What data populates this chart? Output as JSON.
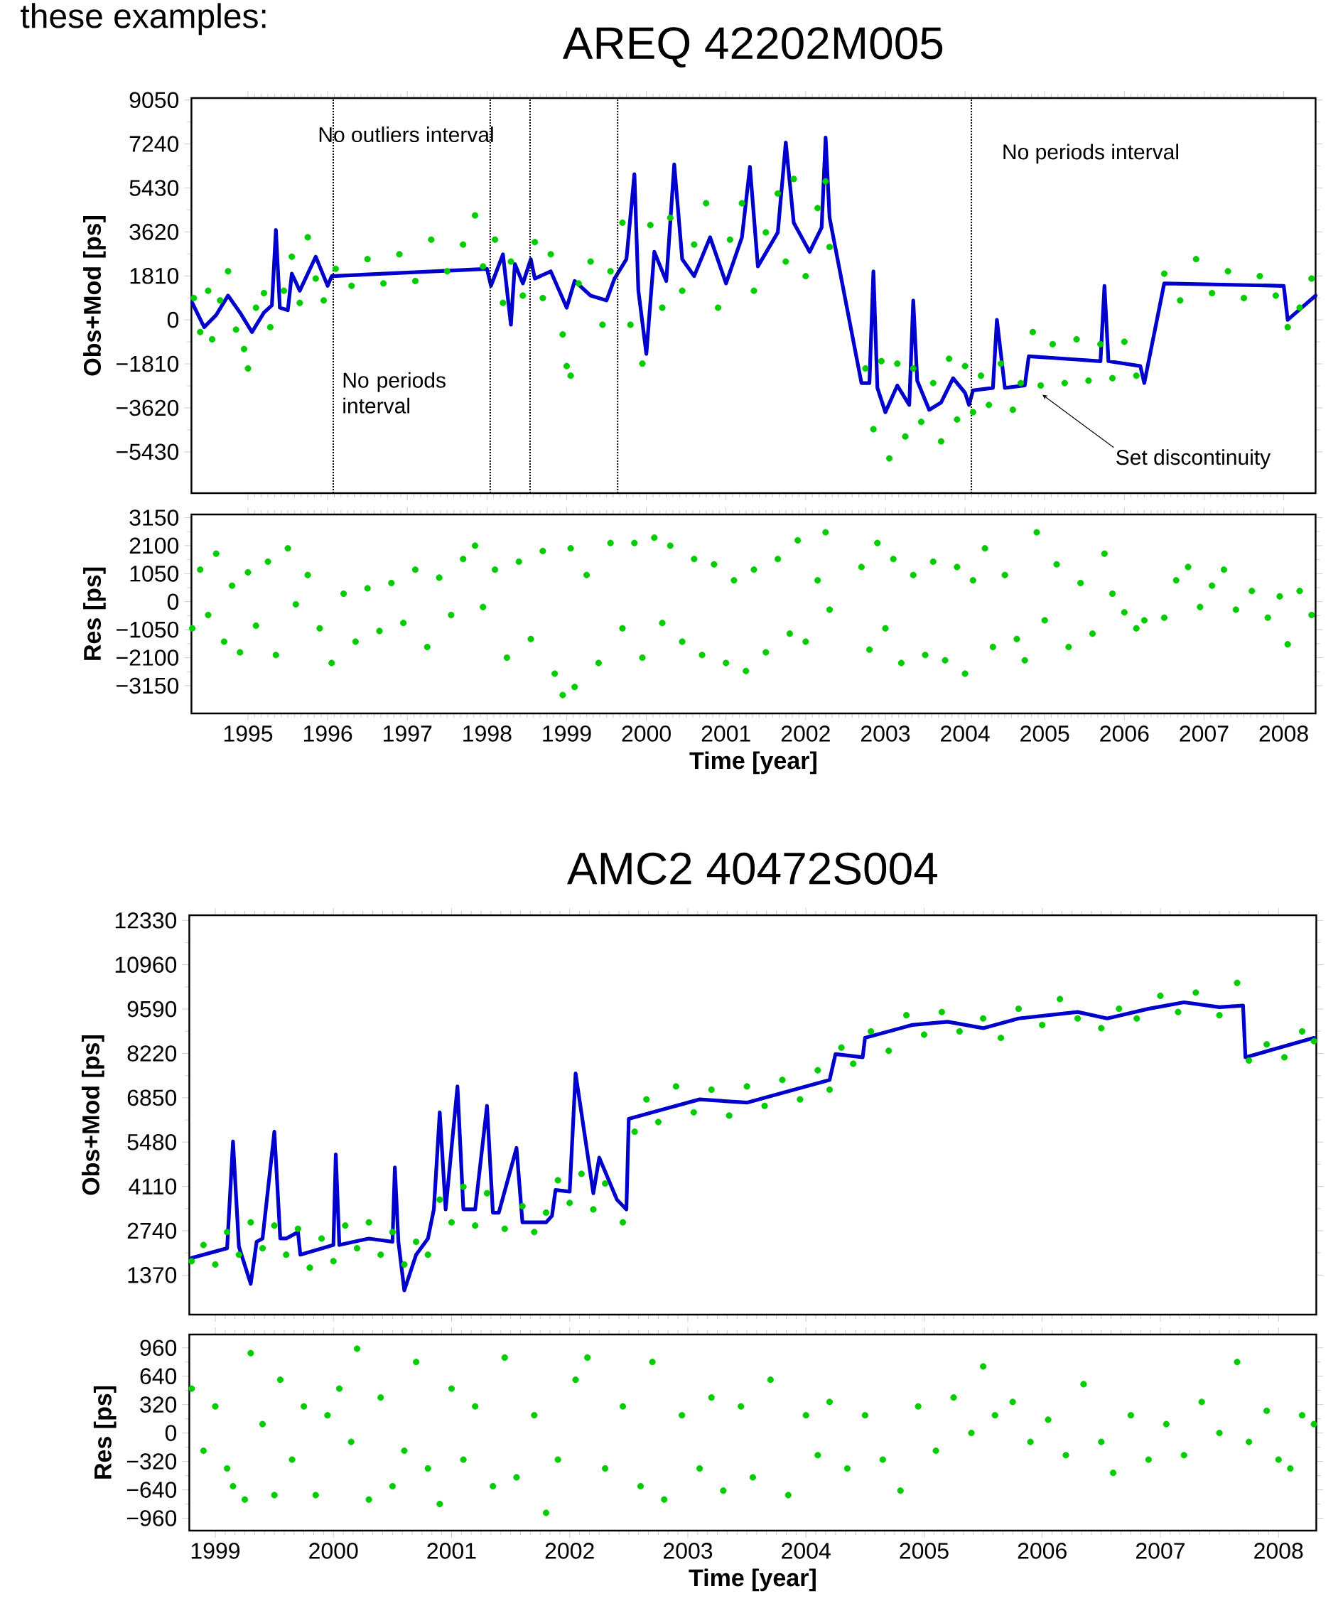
{
  "chart_data": [
    {
      "type": "scatter",
      "title": "AREQ 42202M005",
      "ylabel": "Obs+Mod [ps]",
      "tick_labels": "y",
      "xlim": [
        1994.29,
        2008.4
      ],
      "xticks": [
        1995,
        1996,
        1997,
        1998,
        1999,
        2000,
        2001,
        2002,
        2003,
        2004,
        2005,
        2006,
        2007,
        2008
      ],
      "ylim": [
        -7130,
        9130
      ],
      "yticks": [
        {
          "value": -5430,
          "label": "−5430"
        },
        {
          "value": -3620,
          "label": "−3620"
        },
        {
          "value": -1810,
          "label": "−1810"
        },
        0,
        1810,
        3620,
        5430,
        7240,
        9050
      ],
      "ref_lines": [
        {
          "axis": "x",
          "value": 1996.07,
          "line_style": "dotted"
        },
        {
          "axis": "x",
          "value": 1998.04,
          "line_style": "dotted"
        },
        {
          "axis": "x",
          "value": 1998.54,
          "line_style": "dotted"
        },
        {
          "axis": "x",
          "value": 1999.64,
          "line_style": "dotted"
        },
        {
          "axis": "x",
          "value": 2004.08,
          "line_style": "dotted"
        }
      ],
      "annotations": [
        "these examples:",
        "No outliers interval",
        "No periods interval",
        "No periods interval",
        "Set discontinuity"
      ],
      "series": [
        {
          "color": "#00cc00",
          "x": [
            1994.32,
            1994.4,
            1994.5,
            1994.55,
            1994.65,
            1994.75,
            1994.85,
            1994.95,
            1995.0,
            1995.1,
            1995.2,
            1995.28,
            1995.45,
            1995.55,
            1995.65,
            1995.75,
            1995.85,
            1995.95,
            1996.1,
            1996.3,
            1996.5,
            1996.7,
            1996.9,
            1997.1,
            1997.3,
            1997.5,
            1997.7,
            1997.85,
            1997.95,
            1998.1,
            1998.2,
            1998.3,
            1998.45,
            1998.6,
            1998.7,
            1998.8,
            1998.95,
            1999.0,
            1999.05,
            1999.15,
            1999.3,
            1999.45,
            1999.55,
            1999.7,
            1999.8,
            1999.95,
            2000.05,
            2000.2,
            2000.3,
            2000.45,
            2000.6,
            2000.75,
            2000.9,
            2001.05,
            2001.2,
            2001.35,
            2001.5,
            2001.65,
            2001.75,
            2001.85,
            2002.0,
            2002.15,
            2002.25,
            2002.3,
            2002.75,
            2002.85,
            2002.95,
            2003.05,
            2003.15,
            2003.25,
            2003.35,
            2003.45,
            2003.6,
            2003.7,
            2003.8,
            2003.9,
            2004.0,
            2004.1,
            2004.2,
            2004.3,
            2004.45,
            2004.6,
            2004.7,
            2004.85,
            2004.95,
            2005.1,
            2005.25,
            2005.4,
            2005.55,
            2005.7,
            2005.85,
            2006.0,
            2006.15,
            2006.5,
            2006.7,
            2006.9,
            2007.1,
            2007.3,
            2007.5,
            2007.7,
            2007.9,
            2008.05,
            2008.2,
            2008.35
          ],
          "values": [
            900,
            -500,
            1200,
            -800,
            800,
            2000,
            -400,
            -1200,
            -2000,
            500,
            1100,
            -300,
            1200,
            2600,
            700,
            3400,
            1700,
            800,
            2100,
            1400,
            2500,
            1500,
            2700,
            1600,
            3300,
            2000,
            3100,
            4300,
            2200,
            3300,
            700,
            2400,
            1000,
            3200,
            900,
            2700,
            -600,
            -1900,
            -2300,
            1500,
            2400,
            -200,
            2000,
            4000,
            -200,
            -1800,
            3900,
            500,
            4200,
            1200,
            3100,
            4800,
            500,
            3300,
            4800,
            1200,
            3600,
            5200,
            2400,
            5800,
            1800,
            4600,
            5700,
            3000,
            -2000,
            -4500,
            -1700,
            -5700,
            -1800,
            -4800,
            -2000,
            -4200,
            -2600,
            -5000,
            -1600,
            -4100,
            -1900,
            -3800,
            -2300,
            -3500,
            -1800,
            -3700,
            -2600,
            -500,
            -2700,
            -1000,
            -2600,
            -800,
            -2500,
            -1000,
            -2400,
            -900,
            -2300,
            1900,
            800,
            2500,
            1100,
            2000,
            900,
            1800,
            1000,
            -300,
            500,
            1700
          ]
        },
        {
          "type": "line",
          "color": "#0000cc",
          "x": [
            1994.3,
            1994.45,
            1994.6,
            1994.75,
            1994.9,
            1995.05,
            1995.2,
            1995.3,
            1995.35,
            1995.4,
            1995.5,
            1995.55,
            1995.65,
            1995.85,
            1996.0,
            1996.05,
            1998.0,
            1998.05,
            1998.2,
            1998.3,
            1998.35,
            1998.45,
            1998.55,
            1998.6,
            1998.8,
            1999.0,
            1999.1,
            1999.3,
            1999.5,
            1999.6,
            1999.75,
            1999.85,
            1999.9,
            2000.0,
            2000.1,
            2000.25,
            2000.35,
            2000.45,
            2000.6,
            2000.8,
            2001.0,
            2001.2,
            2001.3,
            2001.4,
            2001.65,
            2001.75,
            2001.85,
            2002.05,
            2002.2,
            2002.25,
            2002.3,
            2002.7,
            2002.8,
            2002.85,
            2002.9,
            2003.0,
            2003.15,
            2003.3,
            2003.35,
            2003.4,
            2003.55,
            2003.7,
            2003.85,
            2004.0,
            2004.05,
            2004.1,
            2004.35,
            2004.4,
            2004.5,
            2004.75,
            2004.8,
            2005.7,
            2005.75,
            2005.8,
            2006.2,
            2006.25,
            2006.5,
            2008.0,
            2008.05,
            2008.4
          ],
          "values": [
            700,
            -300,
            200,
            1000,
            300,
            -500,
            300,
            600,
            3700,
            500,
            400,
            1900,
            1200,
            2600,
            1400,
            1800,
            2100,
            1400,
            2700,
            -200,
            2300,
            1500,
            2500,
            1700,
            2000,
            500,
            1600,
            1000,
            800,
            1700,
            2500,
            6000,
            1200,
            -1400,
            2800,
            1600,
            6400,
            2500,
            1800,
            3400,
            1500,
            3400,
            6300,
            2200,
            3600,
            7300,
            4000,
            2800,
            3800,
            7500,
            4200,
            -2600,
            -2600,
            2000,
            -2800,
            -3800,
            -2700,
            -3500,
            800,
            -2500,
            -3700,
            -3400,
            -2400,
            -3000,
            -3500,
            -2900,
            -2800,
            0,
            -2800,
            -2700,
            -1500,
            -1700,
            1400,
            -1700,
            -1900,
            -2600,
            1500,
            1400,
            0,
            1000
          ]
        }
      ]
    },
    {
      "type": "scatter",
      "xlabel": "Time [year]",
      "ylabel": "Res [ps]",
      "xlim": [
        1994.29,
        2008.4
      ],
      "xticks": [
        1995,
        1996,
        1997,
        1998,
        1999,
        2000,
        2001,
        2002,
        2003,
        2004,
        2005,
        2006,
        2007,
        2008
      ],
      "ylim": [
        -4190,
        3270
      ],
      "yticks": [
        {
          "value": -3150,
          "label": "−3150"
        },
        {
          "value": -2100,
          "label": "−2100"
        },
        {
          "value": -1050,
          "label": "−1050"
        },
        0,
        1050,
        2100,
        3150
      ],
      "series": [
        {
          "color": "#00cc00",
          "x": [
            1994.3,
            1994.4,
            1994.5,
            1994.6,
            1994.7,
            1994.8,
            1994.9,
            1995.0,
            1995.1,
            1995.25,
            1995.35,
            1995.5,
            1995.6,
            1995.75,
            1995.9,
            1996.05,
            1996.2,
            1996.35,
            1996.5,
            1996.65,
            1996.8,
            1996.95,
            1997.1,
            1997.25,
            1997.4,
            1997.55,
            1997.7,
            1997.85,
            1997.95,
            1998.1,
            1998.25,
            1998.4,
            1998.55,
            1998.7,
            1998.85,
            1998.95,
            1999.05,
            1999.1,
            1999.25,
            1999.4,
            1999.55,
            1999.7,
            1999.85,
            1999.95,
            2000.1,
            2000.2,
            2000.3,
            2000.45,
            2000.6,
            2000.7,
            2000.85,
            2001.0,
            2001.1,
            2001.25,
            2001.35,
            2001.5,
            2001.65,
            2001.8,
            2001.9,
            2002.0,
            2002.15,
            2002.25,
            2002.3,
            2002.7,
            2002.8,
            2002.9,
            2003.0,
            2003.1,
            2003.2,
            2003.35,
            2003.5,
            2003.6,
            2003.75,
            2003.9,
            2004.0,
            2004.1,
            2004.25,
            2004.35,
            2004.5,
            2004.65,
            2004.75,
            2004.9,
            2005.0,
            2005.15,
            2005.3,
            2005.45,
            2005.6,
            2005.75,
            2005.85,
            2006.0,
            2006.15,
            2006.25,
            2006.5,
            2006.65,
            2006.8,
            2006.95,
            2007.1,
            2007.25,
            2007.4,
            2007.6,
            2007.8,
            2007.95,
            2008.05,
            2008.2,
            2008.35
          ],
          "values": [
            -1000,
            1200,
            -500,
            1800,
            -1500,
            600,
            -1900,
            1100,
            -900,
            1500,
            -2000,
            2000,
            -100,
            1000,
            -1000,
            -2300,
            300,
            -1500,
            500,
            -1100,
            700,
            -800,
            1200,
            -1700,
            900,
            -500,
            1600,
            2100,
            -200,
            1200,
            -2100,
            1500,
            -1400,
            1900,
            -2700,
            -3500,
            2000,
            -3200,
            1000,
            -2300,
            2200,
            -1000,
            2200,
            -2100,
            2400,
            -800,
            2100,
            -1500,
            1600,
            -2000,
            1400,
            -2300,
            800,
            -2600,
            1200,
            -1900,
            1600,
            -1200,
            2300,
            -1500,
            800,
            2600,
            -300,
            1300,
            -1800,
            2200,
            -1000,
            1600,
            -2300,
            1000,
            -2000,
            1500,
            -2200,
            1300,
            -2700,
            800,
            2000,
            -1700,
            1000,
            -1400,
            -2200,
            2600,
            -700,
            1400,
            -1700,
            700,
            -1200,
            1800,
            300,
            -400,
            -1000,
            -700,
            -600,
            800,
            1300,
            -200,
            600,
            1200,
            -300,
            400,
            -600,
            200,
            -1600,
            400,
            -500
          ]
        }
      ]
    },
    {
      "type": "scatter",
      "title": "AMC2 40472S004",
      "ylabel": "Obs+Mod [ps]",
      "tick_labels": "y",
      "xlim": [
        1998.78,
        2008.32
      ],
      "xticks": [
        1999,
        2000,
        2001,
        2002,
        2003,
        2004,
        2005,
        2006,
        2007,
        2008
      ],
      "ylim": [
        150,
        12490
      ],
      "yticks": [
        1370,
        2740,
        4110,
        5480,
        6850,
        8220,
        9590,
        10960,
        12330
      ],
      "series": [
        {
          "color": "#00cc00",
          "x": [
            1998.8,
            1998.9,
            1999.0,
            1999.1,
            1999.2,
            1999.3,
            1999.4,
            1999.5,
            1999.6,
            1999.7,
            1999.8,
            1999.9,
            2000.0,
            2000.1,
            2000.2,
            2000.3,
            2000.4,
            2000.5,
            2000.6,
            2000.7,
            2000.8,
            2000.9,
            2001.0,
            2001.1,
            2001.2,
            2001.3,
            2001.45,
            2001.6,
            2001.7,
            2001.8,
            2001.9,
            2002.0,
            2002.1,
            2002.2,
            2002.3,
            2002.45,
            2002.55,
            2002.65,
            2002.75,
            2002.9,
            2003.05,
            2003.2,
            2003.35,
            2003.5,
            2003.65,
            2003.8,
            2003.95,
            2004.1,
            2004.2,
            2004.3,
            2004.4,
            2004.55,
            2004.7,
            2004.85,
            2005.0,
            2005.15,
            2005.3,
            2005.5,
            2005.65,
            2005.8,
            2006.0,
            2006.15,
            2006.3,
            2006.5,
            2006.65,
            2006.8,
            2007.0,
            2007.15,
            2007.3,
            2007.5,
            2007.65,
            2007.75,
            2007.9,
            2008.05,
            2008.2,
            2008.3
          ],
          "values": [
            1800,
            2300,
            1700,
            2700,
            2000,
            3000,
            2200,
            2900,
            2000,
            2800,
            1600,
            2500,
            1800,
            2900,
            2200,
            3000,
            2000,
            2700,
            1700,
            2400,
            2000,
            3700,
            3000,
            4100,
            2900,
            3900,
            2800,
            3500,
            2700,
            3300,
            4300,
            3600,
            4500,
            3400,
            4200,
            3000,
            5800,
            6800,
            6100,
            7200,
            6400,
            7100,
            6300,
            7200,
            6600,
            7400,
            6800,
            7700,
            7100,
            8400,
            7900,
            8900,
            8300,
            9400,
            8800,
            9500,
            8900,
            9300,
            8700,
            9600,
            9100,
            9900,
            9300,
            9000,
            9600,
            9300,
            10000,
            9500,
            10100,
            9400,
            10400,
            8000,
            8500,
            8100,
            8900,
            8600
          ]
        },
        {
          "type": "line",
          "color": "#0000cc",
          "x": [
            1998.8,
            1999.1,
            1999.15,
            1999.2,
            1999.3,
            1999.35,
            1999.4,
            1999.5,
            1999.55,
            1999.6,
            1999.7,
            1999.72,
            2000.0,
            2000.02,
            2000.05,
            2000.3,
            2000.5,
            2000.52,
            2000.55,
            2000.6,
            2000.7,
            2000.8,
            2000.85,
            2000.9,
            2000.95,
            2001.05,
            2001.1,
            2001.2,
            2001.3,
            2001.35,
            2001.4,
            2001.55,
            2001.6,
            2001.8,
            2001.85,
            2001.88,
            2002.0,
            2002.05,
            2002.2,
            2002.25,
            2002.4,
            2002.48,
            2002.5,
            2002.8,
            2003.1,
            2003.5,
            2003.8,
            2004.2,
            2004.25,
            2004.48,
            2004.5,
            2004.9,
            2005.2,
            2005.5,
            2005.8,
            2006.3,
            2006.55,
            2006.9,
            2007.2,
            2007.5,
            2007.7,
            2007.72,
            2008.3
          ],
          "values": [
            1900,
            2200,
            5500,
            2250,
            1100,
            2400,
            2500,
            5800,
            2500,
            2500,
            2700,
            2000,
            2300,
            5100,
            2300,
            2500,
            2400,
            4700,
            2400,
            900,
            2000,
            2500,
            3400,
            6400,
            3400,
            7200,
            3400,
            3400,
            6600,
            3300,
            3300,
            5300,
            3000,
            3000,
            3200,
            4000,
            3950,
            7600,
            3900,
            5000,
            3700,
            3400,
            6200,
            6500,
            6800,
            6700,
            7000,
            7400,
            8200,
            8100,
            8700,
            9100,
            9200,
            9000,
            9300,
            9500,
            9300,
            9600,
            9800,
            9650,
            9700,
            8100,
            8700
          ]
        }
      ]
    },
    {
      "type": "scatter",
      "xlabel": "Time [year]",
      "ylabel": "Res [ps]",
      "xlim": [
        1998.78,
        2008.32
      ],
      "xticks": [
        1999,
        2000,
        2001,
        2002,
        2003,
        2004,
        2005,
        2006,
        2007,
        2008
      ],
      "ylim": [
        -1100,
        1110
      ],
      "yticks": [
        {
          "value": -960,
          "label": "−960"
        },
        {
          "value": -640,
          "label": "−640"
        },
        {
          "value": -320,
          "label": "−320"
        },
        0,
        320,
        640,
        960
      ],
      "series": [
        {
          "color": "#00cc00",
          "x": [
            1998.8,
            1998.9,
            1999.0,
            1999.1,
            1999.15,
            1999.25,
            1999.3,
            1999.4,
            1999.5,
            1999.55,
            1999.65,
            1999.75,
            1999.85,
            1999.95,
            2000.05,
            2000.15,
            2000.2,
            2000.3,
            2000.4,
            2000.5,
            2000.6,
            2000.7,
            2000.8,
            2000.9,
            2001.0,
            2001.1,
            2001.2,
            2001.35,
            2001.45,
            2001.55,
            2001.7,
            2001.8,
            2001.9,
            2002.05,
            2002.15,
            2002.3,
            2002.45,
            2002.6,
            2002.7,
            2002.8,
            2002.95,
            2003.1,
            2003.2,
            2003.3,
            2003.45,
            2003.55,
            2003.7,
            2003.85,
            2004.0,
            2004.1,
            2004.2,
            2004.35,
            2004.5,
            2004.65,
            2004.8,
            2004.95,
            2005.1,
            2005.25,
            2005.4,
            2005.5,
            2005.6,
            2005.75,
            2005.9,
            2006.05,
            2006.2,
            2006.35,
            2006.5,
            2006.6,
            2006.75,
            2006.9,
            2007.05,
            2007.2,
            2007.35,
            2007.5,
            2007.65,
            2007.75,
            2007.9,
            2008.0,
            2008.1,
            2008.2,
            2008.3
          ],
          "values": [
            500,
            -200,
            300,
            -400,
            -600,
            -750,
            900,
            100,
            -700,
            600,
            -300,
            300,
            -700,
            200,
            500,
            -100,
            950,
            -750,
            400,
            -600,
            -200,
            800,
            -400,
            -800,
            500,
            -300,
            300,
            -600,
            850,
            -500,
            200,
            -900,
            -300,
            600,
            850,
            -400,
            300,
            -600,
            800,
            -750,
            200,
            -400,
            400,
            -650,
            300,
            -500,
            600,
            -700,
            200,
            -250,
            350,
            -400,
            200,
            -300,
            -650,
            300,
            -200,
            400,
            0,
            750,
            200,
            350,
            -100,
            150,
            -250,
            550,
            -100,
            -450,
            200,
            -300,
            100,
            -250,
            350,
            0,
            800,
            -100,
            250,
            -300,
            -400,
            200,
            100
          ]
        }
      ]
    }
  ]
}
